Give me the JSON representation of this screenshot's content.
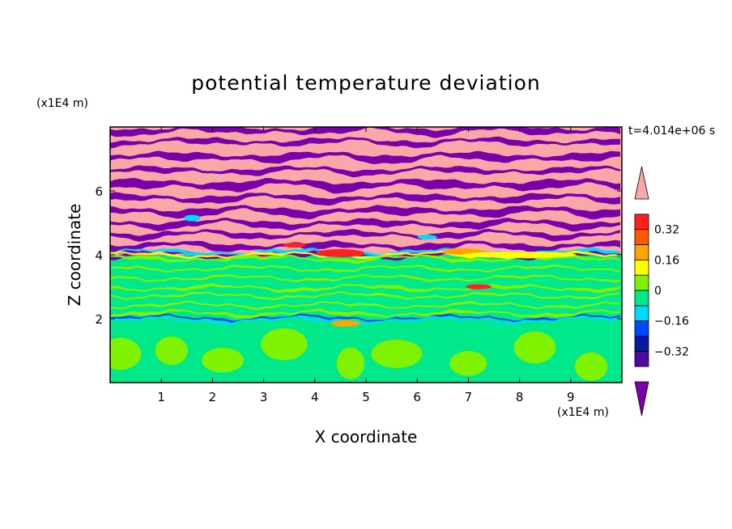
{
  "chart_data": {
    "type": "heatmap",
    "title": "potential temperature deviation",
    "xlabel": "X coordinate",
    "ylabel": "Z coordinate",
    "x_unit": "(x1E4 m)",
    "y_unit": "(x1E4 m)",
    "time_label": "t=4.014e+06 s",
    "xlim": [
      0,
      10
    ],
    "ylim": [
      0,
      8
    ],
    "x_ticks": [
      "1",
      "2",
      "3",
      "4",
      "5",
      "6",
      "7",
      "8",
      "9"
    ],
    "y_ticks": [
      "2",
      "4",
      "6"
    ],
    "colorbar": {
      "levels": [
        -0.48,
        -0.4,
        -0.32,
        -0.24,
        -0.16,
        -0.08,
        0,
        0.08,
        0.16,
        0.24,
        0.32,
        0.4,
        0.48
      ],
      "tick_labels": [
        "0.32",
        "0.16",
        "0",
        "−0.16",
        "−0.32"
      ],
      "tick_values": [
        0.32,
        0.16,
        0,
        -0.16,
        -0.32
      ],
      "colors": [
        "#7a00a8",
        "#4e0aa0",
        "#0a1aa0",
        "#0047ff",
        "#00d8ff",
        "#00e88a",
        "#7ef200",
        "#ffff00",
        "#ffa500",
        "#ff5a00",
        "#ff2020",
        "#f9a8a8"
      ],
      "extends": "both"
    },
    "regions": [
      {
        "z_range": [
          0,
          2
        ],
        "description": "mix of -0.08..0 and 0..0.08 bands"
      },
      {
        "z_range": [
          2,
          4
        ],
        "description": "mostly -0.08..0 with thin 0..0.08 layers"
      },
      {
        "z_range": [
          4,
          8
        ],
        "description": "alternating >0.48 and <-0.48 layers"
      }
    ]
  }
}
